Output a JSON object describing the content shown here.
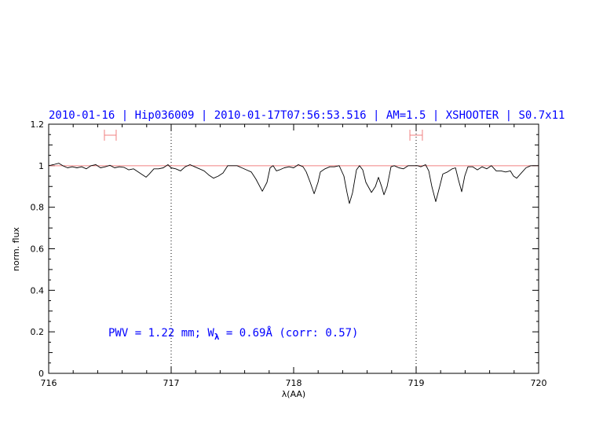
{
  "chart_data": {
    "type": "line",
    "title": "2010-01-16 | Hip036009 | 2010-01-17T07:56:53.516 | AM=1.5 | XSHOOTER | S0.7x11",
    "xlabel": "λ(AA)",
    "ylabel": "norm. flux",
    "xlim": [
      716,
      720
    ],
    "ylim": [
      0,
      1.2
    ],
    "xticks": [
      "716",
      "717",
      "718",
      "719",
      "720"
    ],
    "yticks": [
      "0",
      "0.2",
      "0.4",
      "0.6",
      "0.8",
      "1",
      "1.2"
    ],
    "grid": false,
    "reference_line": {
      "y": 1.0,
      "color": "#f08080"
    },
    "vertical_dotted_lines": [
      717,
      719
    ],
    "error_bars": [
      {
        "x_range": [
          716.455,
          716.551
        ],
        "y": 1.147,
        "color": "#f08080"
      },
      {
        "x_range": [
          718.949,
          719.051
        ],
        "y": 1.147,
        "color": "#f08080"
      }
    ],
    "annotation": {
      "prefix": "PWV = 1.22 mm; W",
      "sub": "λ",
      "suffix": " = 0.69Å (corr: 0.57)",
      "color": "#0000ff"
    },
    "series": [
      {
        "color": "#000000",
        "x": [
          716.0,
          716.038,
          716.083,
          716.115,
          716.154,
          716.192,
          716.231,
          716.269,
          716.308,
          716.346,
          716.385,
          716.423,
          716.462,
          716.5,
          716.538,
          716.577,
          716.615,
          716.654,
          716.692,
          716.731,
          716.769,
          716.795,
          716.821,
          716.859,
          716.897,
          716.936,
          716.974,
          717.0,
          717.038,
          717.077,
          717.115,
          717.154,
          717.192,
          717.231,
          717.269,
          717.308,
          717.346,
          717.385,
          717.423,
          717.462,
          717.5,
          717.538,
          717.577,
          717.615,
          717.654,
          717.692,
          717.744,
          717.782,
          717.808,
          717.833,
          717.859,
          717.885,
          717.923,
          717.962,
          718.0,
          718.038,
          718.077,
          718.103,
          718.135,
          718.167,
          718.199,
          718.218,
          718.256,
          718.295,
          718.333,
          718.372,
          718.41,
          718.436,
          718.455,
          718.481,
          718.513,
          718.538,
          718.564,
          718.59,
          718.635,
          718.667,
          718.692,
          718.718,
          718.737,
          718.763,
          718.795,
          718.821,
          718.859,
          718.897,
          718.936,
          718.974,
          719.013,
          719.038,
          719.077,
          719.103,
          719.128,
          719.16,
          719.192,
          719.218,
          719.256,
          719.295,
          719.321,
          719.346,
          719.372,
          719.397,
          719.423,
          719.462,
          719.5,
          719.538,
          719.577,
          719.615,
          719.654,
          719.692,
          719.731,
          719.769,
          719.795,
          719.821,
          719.859,
          719.897,
          719.936,
          720.0
        ],
        "y": [
          1.0,
          1.005,
          1.012,
          1.0,
          0.99,
          0.995,
          0.99,
          0.995,
          0.985,
          1.0,
          1.005,
          0.99,
          0.995,
          1.002,
          0.99,
          0.995,
          0.992,
          0.98,
          0.985,
          0.97,
          0.955,
          0.945,
          0.96,
          0.985,
          0.985,
          0.99,
          1.005,
          0.99,
          0.985,
          0.975,
          0.995,
          1.005,
          0.995,
          0.985,
          0.975,
          0.955,
          0.94,
          0.95,
          0.965,
          1.0,
          1.0,
          1.0,
          0.99,
          0.98,
          0.97,
          0.935,
          0.877,
          0.92,
          0.99,
          1.0,
          0.975,
          0.98,
          0.99,
          0.995,
          0.99,
          1.005,
          0.995,
          0.97,
          0.92,
          0.865,
          0.92,
          0.97,
          0.985,
          0.995,
          0.995,
          1.0,
          0.95,
          0.87,
          0.818,
          0.87,
          0.98,
          1.0,
          0.98,
          0.92,
          0.871,
          0.9,
          0.944,
          0.9,
          0.86,
          0.9,
          0.995,
          1.0,
          0.99,
          0.985,
          1.0,
          1.0,
          1.0,
          0.995,
          1.005,
          0.975,
          0.9,
          0.827,
          0.9,
          0.96,
          0.97,
          0.985,
          0.99,
          0.93,
          0.875,
          0.95,
          0.995,
          0.995,
          0.98,
          0.995,
          0.985,
          1.0,
          0.975,
          0.975,
          0.97,
          0.975,
          0.95,
          0.94,
          0.965,
          0.99,
          1.0,
          1.0
        ]
      }
    ]
  }
}
